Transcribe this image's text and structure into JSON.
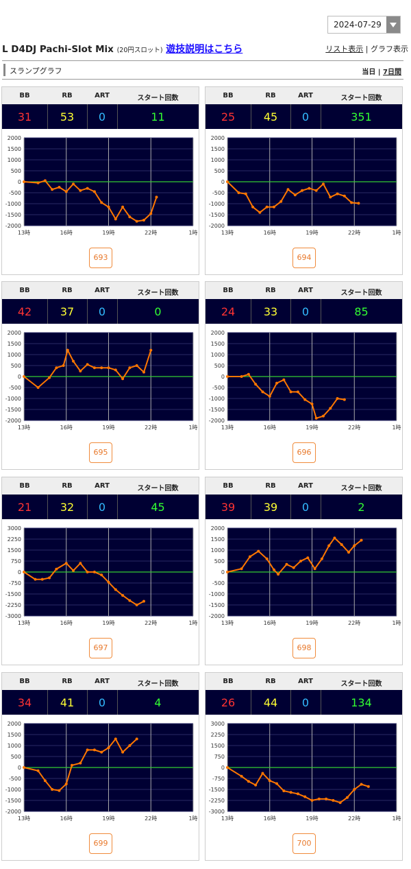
{
  "date_select": {
    "value": "2024-07-29"
  },
  "header": {
    "title": "L D4DJ Pachi-Slot Mix",
    "subtitle": "(20円スロット)",
    "guide_link": "遊技説明はこちら",
    "list_view": "リスト表示",
    "graph_view": "グラフ表示"
  },
  "section": {
    "label": "スランプグラフ",
    "today": "当日",
    "week": "7日間"
  },
  "columns": [
    "BB",
    "RB",
    "ART",
    "スタート回数"
  ],
  "x_ticks": [
    "13時",
    "16時",
    "19時",
    "22時",
    "1時"
  ],
  "colors": {
    "bb": "#ff3333",
    "rb": "#ffff33",
    "art": "#33bbff",
    "start": "#33ff33",
    "line": "#ff7700",
    "zero": "#33cc33",
    "plot_bg": "#000033"
  },
  "machines": [
    {
      "id": "693",
      "bb": "31",
      "rb": "53",
      "art": "0",
      "start": "11",
      "chart_data": {
        "type": "line",
        "ylim": [
          -2000,
          2000
        ],
        "y_ticks": [
          "2000",
          "1500",
          "1000",
          "500",
          "0",
          "-500",
          "-1000",
          "-1500",
          "-2000"
        ],
        "points": [
          [
            13,
            0
          ],
          [
            14,
            -50
          ],
          [
            14.5,
            50
          ],
          [
            15,
            -350
          ],
          [
            15.5,
            -250
          ],
          [
            16,
            -450
          ],
          [
            16.5,
            -100
          ],
          [
            17,
            -400
          ],
          [
            17.5,
            -300
          ],
          [
            18,
            -450
          ],
          [
            18.5,
            -950
          ],
          [
            19,
            -1150
          ],
          [
            19.5,
            -1700
          ],
          [
            20,
            -1150
          ],
          [
            20.5,
            -1600
          ],
          [
            21,
            -1800
          ],
          [
            21.5,
            -1750
          ],
          [
            22,
            -1450
          ],
          [
            22.4,
            -700
          ]
        ]
      }
    },
    {
      "id": "694",
      "bb": "25",
      "rb": "45",
      "art": "0",
      "start": "351",
      "chart_data": {
        "type": "line",
        "ylim": [
          -2000,
          2000
        ],
        "y_ticks": [
          "2000",
          "1500",
          "1000",
          "500",
          "0",
          "-500",
          "-1000",
          "-1500",
          "-2000"
        ],
        "points": [
          [
            13,
            0
          ],
          [
            13.8,
            -500
          ],
          [
            14.3,
            -550
          ],
          [
            14.8,
            -1150
          ],
          [
            15.3,
            -1400
          ],
          [
            15.8,
            -1150
          ],
          [
            16.3,
            -1150
          ],
          [
            16.8,
            -900
          ],
          [
            17.3,
            -350
          ],
          [
            17.8,
            -600
          ],
          [
            18.3,
            -400
          ],
          [
            18.8,
            -300
          ],
          [
            19.3,
            -400
          ],
          [
            19.8,
            -100
          ],
          [
            20.3,
            -700
          ],
          [
            20.8,
            -550
          ],
          [
            21.3,
            -650
          ],
          [
            21.8,
            -950
          ],
          [
            22.3,
            -980
          ]
        ]
      }
    },
    {
      "id": "695",
      "bb": "42",
      "rb": "37",
      "art": "0",
      "start": "0",
      "chart_data": {
        "type": "line",
        "ylim": [
          -2000,
          2000
        ],
        "y_ticks": [
          "2000",
          "1500",
          "1000",
          "500",
          "0",
          "-500",
          "-1000",
          "-1500",
          "-2000"
        ],
        "points": [
          [
            13,
            0
          ],
          [
            14,
            -500
          ],
          [
            14.8,
            -50
          ],
          [
            15.3,
            400
          ],
          [
            15.8,
            500
          ],
          [
            16.1,
            1200
          ],
          [
            16.5,
            700
          ],
          [
            17,
            250
          ],
          [
            17.5,
            550
          ],
          [
            18,
            400
          ],
          [
            18.5,
            400
          ],
          [
            19,
            400
          ],
          [
            19.5,
            300
          ],
          [
            20,
            -100
          ],
          [
            20.5,
            400
          ],
          [
            21,
            500
          ],
          [
            21.5,
            200
          ],
          [
            22,
            1200
          ]
        ]
      }
    },
    {
      "id": "696",
      "bb": "24",
      "rb": "33",
      "art": "0",
      "start": "85",
      "chart_data": {
        "type": "line",
        "ylim": [
          -2000,
          2000
        ],
        "y_ticks": [
          "2000",
          "1500",
          "1000",
          "500",
          "0",
          "-500",
          "-1000",
          "-1500",
          "-2000"
        ],
        "points": [
          [
            13,
            0
          ],
          [
            14,
            0
          ],
          [
            14.5,
            100
          ],
          [
            15,
            -350
          ],
          [
            15.5,
            -700
          ],
          [
            16,
            -900
          ],
          [
            16.5,
            -300
          ],
          [
            17,
            -150
          ],
          [
            17.5,
            -700
          ],
          [
            18,
            -700
          ],
          [
            18.5,
            -1050
          ],
          [
            19,
            -1250
          ],
          [
            19.3,
            -1900
          ],
          [
            19.8,
            -1800
          ],
          [
            20.3,
            -1450
          ],
          [
            20.8,
            -1000
          ],
          [
            21.3,
            -1050
          ]
        ]
      }
    },
    {
      "id": "697",
      "bb": "21",
      "rb": "32",
      "art": "0",
      "start": "45",
      "chart_data": {
        "type": "line",
        "ylim": [
          -3000,
          3000
        ],
        "y_ticks": [
          "3000",
          "2250",
          "1500",
          "750",
          "0",
          "-750",
          "-1500",
          "-2250",
          "-3000"
        ],
        "points": [
          [
            13,
            0
          ],
          [
            13.8,
            -500
          ],
          [
            14.3,
            -500
          ],
          [
            14.8,
            -400
          ],
          [
            15.3,
            200
          ],
          [
            16,
            600
          ],
          [
            16.5,
            100
          ],
          [
            17,
            600
          ],
          [
            17.5,
            0
          ],
          [
            18,
            0
          ],
          [
            18.5,
            -200
          ],
          [
            19,
            -700
          ],
          [
            19.5,
            -1200
          ],
          [
            20,
            -1600
          ],
          [
            20.5,
            -1950
          ],
          [
            21,
            -2250
          ],
          [
            21.5,
            -2000
          ]
        ]
      }
    },
    {
      "id": "698",
      "bb": "39",
      "rb": "39",
      "art": "0",
      "start": "2",
      "chart_data": {
        "type": "line",
        "ylim": [
          -2000,
          2000
        ],
        "y_ticks": [
          "2000",
          "1500",
          "1000",
          "500",
          "0",
          "-500",
          "-1000",
          "-1500",
          "-2000"
        ],
        "points": [
          [
            13,
            0
          ],
          [
            14,
            150
          ],
          [
            14.6,
            700
          ],
          [
            15.2,
            950
          ],
          [
            15.8,
            600
          ],
          [
            16.3,
            100
          ],
          [
            16.6,
            -100
          ],
          [
            17.2,
            350
          ],
          [
            17.7,
            200
          ],
          [
            18.2,
            500
          ],
          [
            18.7,
            650
          ],
          [
            19.2,
            150
          ],
          [
            19.7,
            600
          ],
          [
            20.2,
            1200
          ],
          [
            20.6,
            1550
          ],
          [
            21.1,
            1250
          ],
          [
            21.6,
            900
          ],
          [
            22,
            1200
          ],
          [
            22.5,
            1450
          ]
        ]
      }
    },
    {
      "id": "699",
      "bb": "34",
      "rb": "41",
      "art": "0",
      "start": "4",
      "chart_data": {
        "type": "line",
        "ylim": [
          -2000,
          2000
        ],
        "y_ticks": [
          "2000",
          "1500",
          "1000",
          "500",
          "0",
          "-500",
          "-1000",
          "-1500",
          "-2000"
        ],
        "points": [
          [
            13,
            0
          ],
          [
            14,
            -150
          ],
          [
            14.5,
            -600
          ],
          [
            15,
            -1000
          ],
          [
            15.5,
            -1050
          ],
          [
            16,
            -750
          ],
          [
            16.4,
            100
          ],
          [
            17,
            200
          ],
          [
            17.5,
            800
          ],
          [
            18,
            800
          ],
          [
            18.5,
            700
          ],
          [
            19,
            900
          ],
          [
            19.5,
            1300
          ],
          [
            20,
            700
          ],
          [
            20.5,
            1000
          ],
          [
            21,
            1300
          ]
        ]
      }
    },
    {
      "id": "700",
      "bb": "26",
      "rb": "44",
      "art": "0",
      "start": "134",
      "chart_data": {
        "type": "line",
        "ylim": [
          -3000,
          3000
        ],
        "y_ticks": [
          "3000",
          "2250",
          "1500",
          "750",
          "0",
          "-750",
          "-1500",
          "-2250",
          "-3000"
        ],
        "points": [
          [
            13,
            0
          ],
          [
            14,
            -600
          ],
          [
            14.5,
            -950
          ],
          [
            15,
            -1200
          ],
          [
            15.5,
            -400
          ],
          [
            16,
            -900
          ],
          [
            16.5,
            -1100
          ],
          [
            17,
            -1600
          ],
          [
            17.5,
            -1700
          ],
          [
            18,
            -1800
          ],
          [
            18.5,
            -2000
          ],
          [
            19,
            -2250
          ],
          [
            19.5,
            -2150
          ],
          [
            20,
            -2150
          ],
          [
            20.5,
            -2250
          ],
          [
            21,
            -2400
          ],
          [
            21.5,
            -2050
          ],
          [
            22,
            -1500
          ],
          [
            22.5,
            -1150
          ],
          [
            23,
            -1300
          ]
        ]
      }
    }
  ]
}
